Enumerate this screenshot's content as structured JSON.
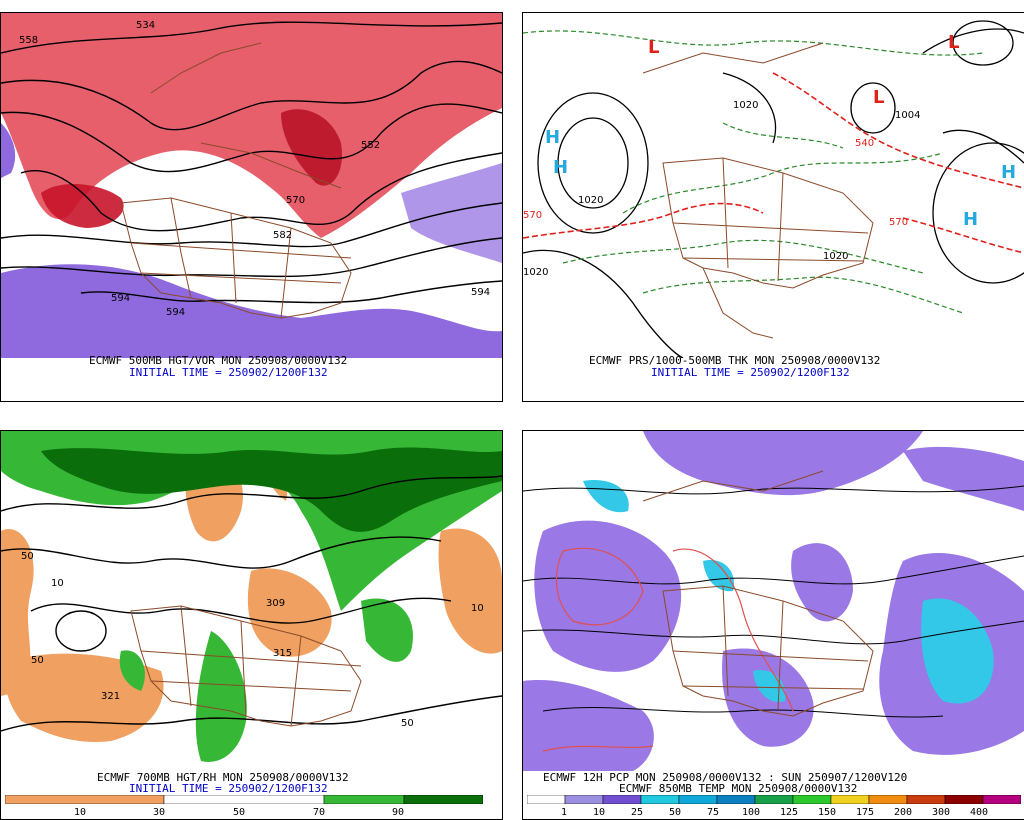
{
  "panels": {
    "tl": {
      "caption": "ECMWF 500MB HGT/VOR MON 250908/0000V132",
      "initial": "INITIAL TIME = 250902/1200F132",
      "contour_labels": [
        "558",
        "534",
        "552",
        "570",
        "582",
        "594",
        "594",
        "594"
      ]
    },
    "tr": {
      "caption": "ECMWF PRS/1000-500MB THK MON 250908/0000V132",
      "initial": "INITIAL TIME = 250902/1200F132",
      "contour_labels": [
        "1020",
        "1020",
        "1020",
        "1004",
        "570",
        "540",
        "570",
        "1020"
      ],
      "high_symbols": [
        "H",
        "H",
        "H",
        "H"
      ],
      "low_symbols": [
        "L",
        "L",
        "L"
      ]
    },
    "bl": {
      "caption": "ECMWF 700MB HGT/RH MON 250908/0000V132",
      "initial": "INITIAL TIME = 250902/1200F132",
      "contour_labels": [
        "50",
        "10",
        "50",
        "309",
        "315",
        "321",
        "50",
        "10"
      ],
      "colorbar": {
        "labels": [
          "10",
          "30",
          "50",
          "70",
          "90"
        ],
        "colors": [
          "#f0a060",
          "#e88848",
          "#ffffff",
          "#36b836",
          "#0a6e0a"
        ]
      }
    },
    "br": {
      "caption": "ECMWF 12H PCP MON 250908/0000V132 : SUN 250907/1200V120",
      "caption2": "ECMWF 850MB TEMP MON 250908/0000V132",
      "colorbar": {
        "labels": [
          "1",
          "10",
          "25",
          "50",
          "75",
          "100",
          "125",
          "150",
          "175",
          "200",
          "300",
          "400"
        ],
        "colors": [
          "#ffffff",
          "#9b8fe0",
          "#7050d0",
          "#20c8e0",
          "#10a8d8",
          "#0c80c0",
          "#1aa048",
          "#2cc82c",
          "#f0d020",
          "#f08c10",
          "#c83c10",
          "#8c0000",
          "#b4007e"
        ]
      }
    }
  },
  "colors": {
    "vorticity_pos": "#dd2a3a",
    "vorticity_neg": "#7b50d8",
    "borders": "#8b4a2a",
    "thickness_cold": "#2a8a2a",
    "thickness_warm": "#e0201a",
    "high_marker": "#26a8e0",
    "pcp_main": "#9a78e6",
    "pcp_heavy": "#34c8e8"
  }
}
